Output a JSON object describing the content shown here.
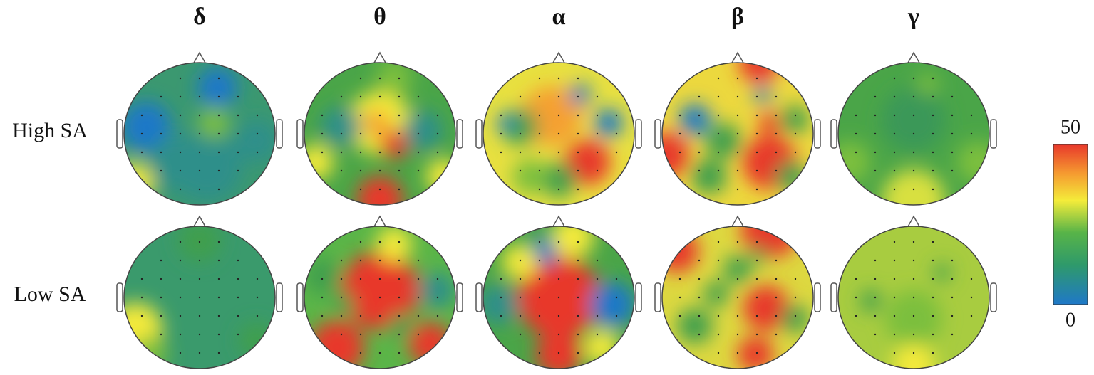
{
  "columns": [
    "δ",
    "θ",
    "α",
    "β",
    "γ"
  ],
  "rows": [
    "High SA",
    "Low SA"
  ],
  "colorbar": {
    "range": [
      0,
      50
    ],
    "ticks": [
      0,
      50
    ]
  }
}
